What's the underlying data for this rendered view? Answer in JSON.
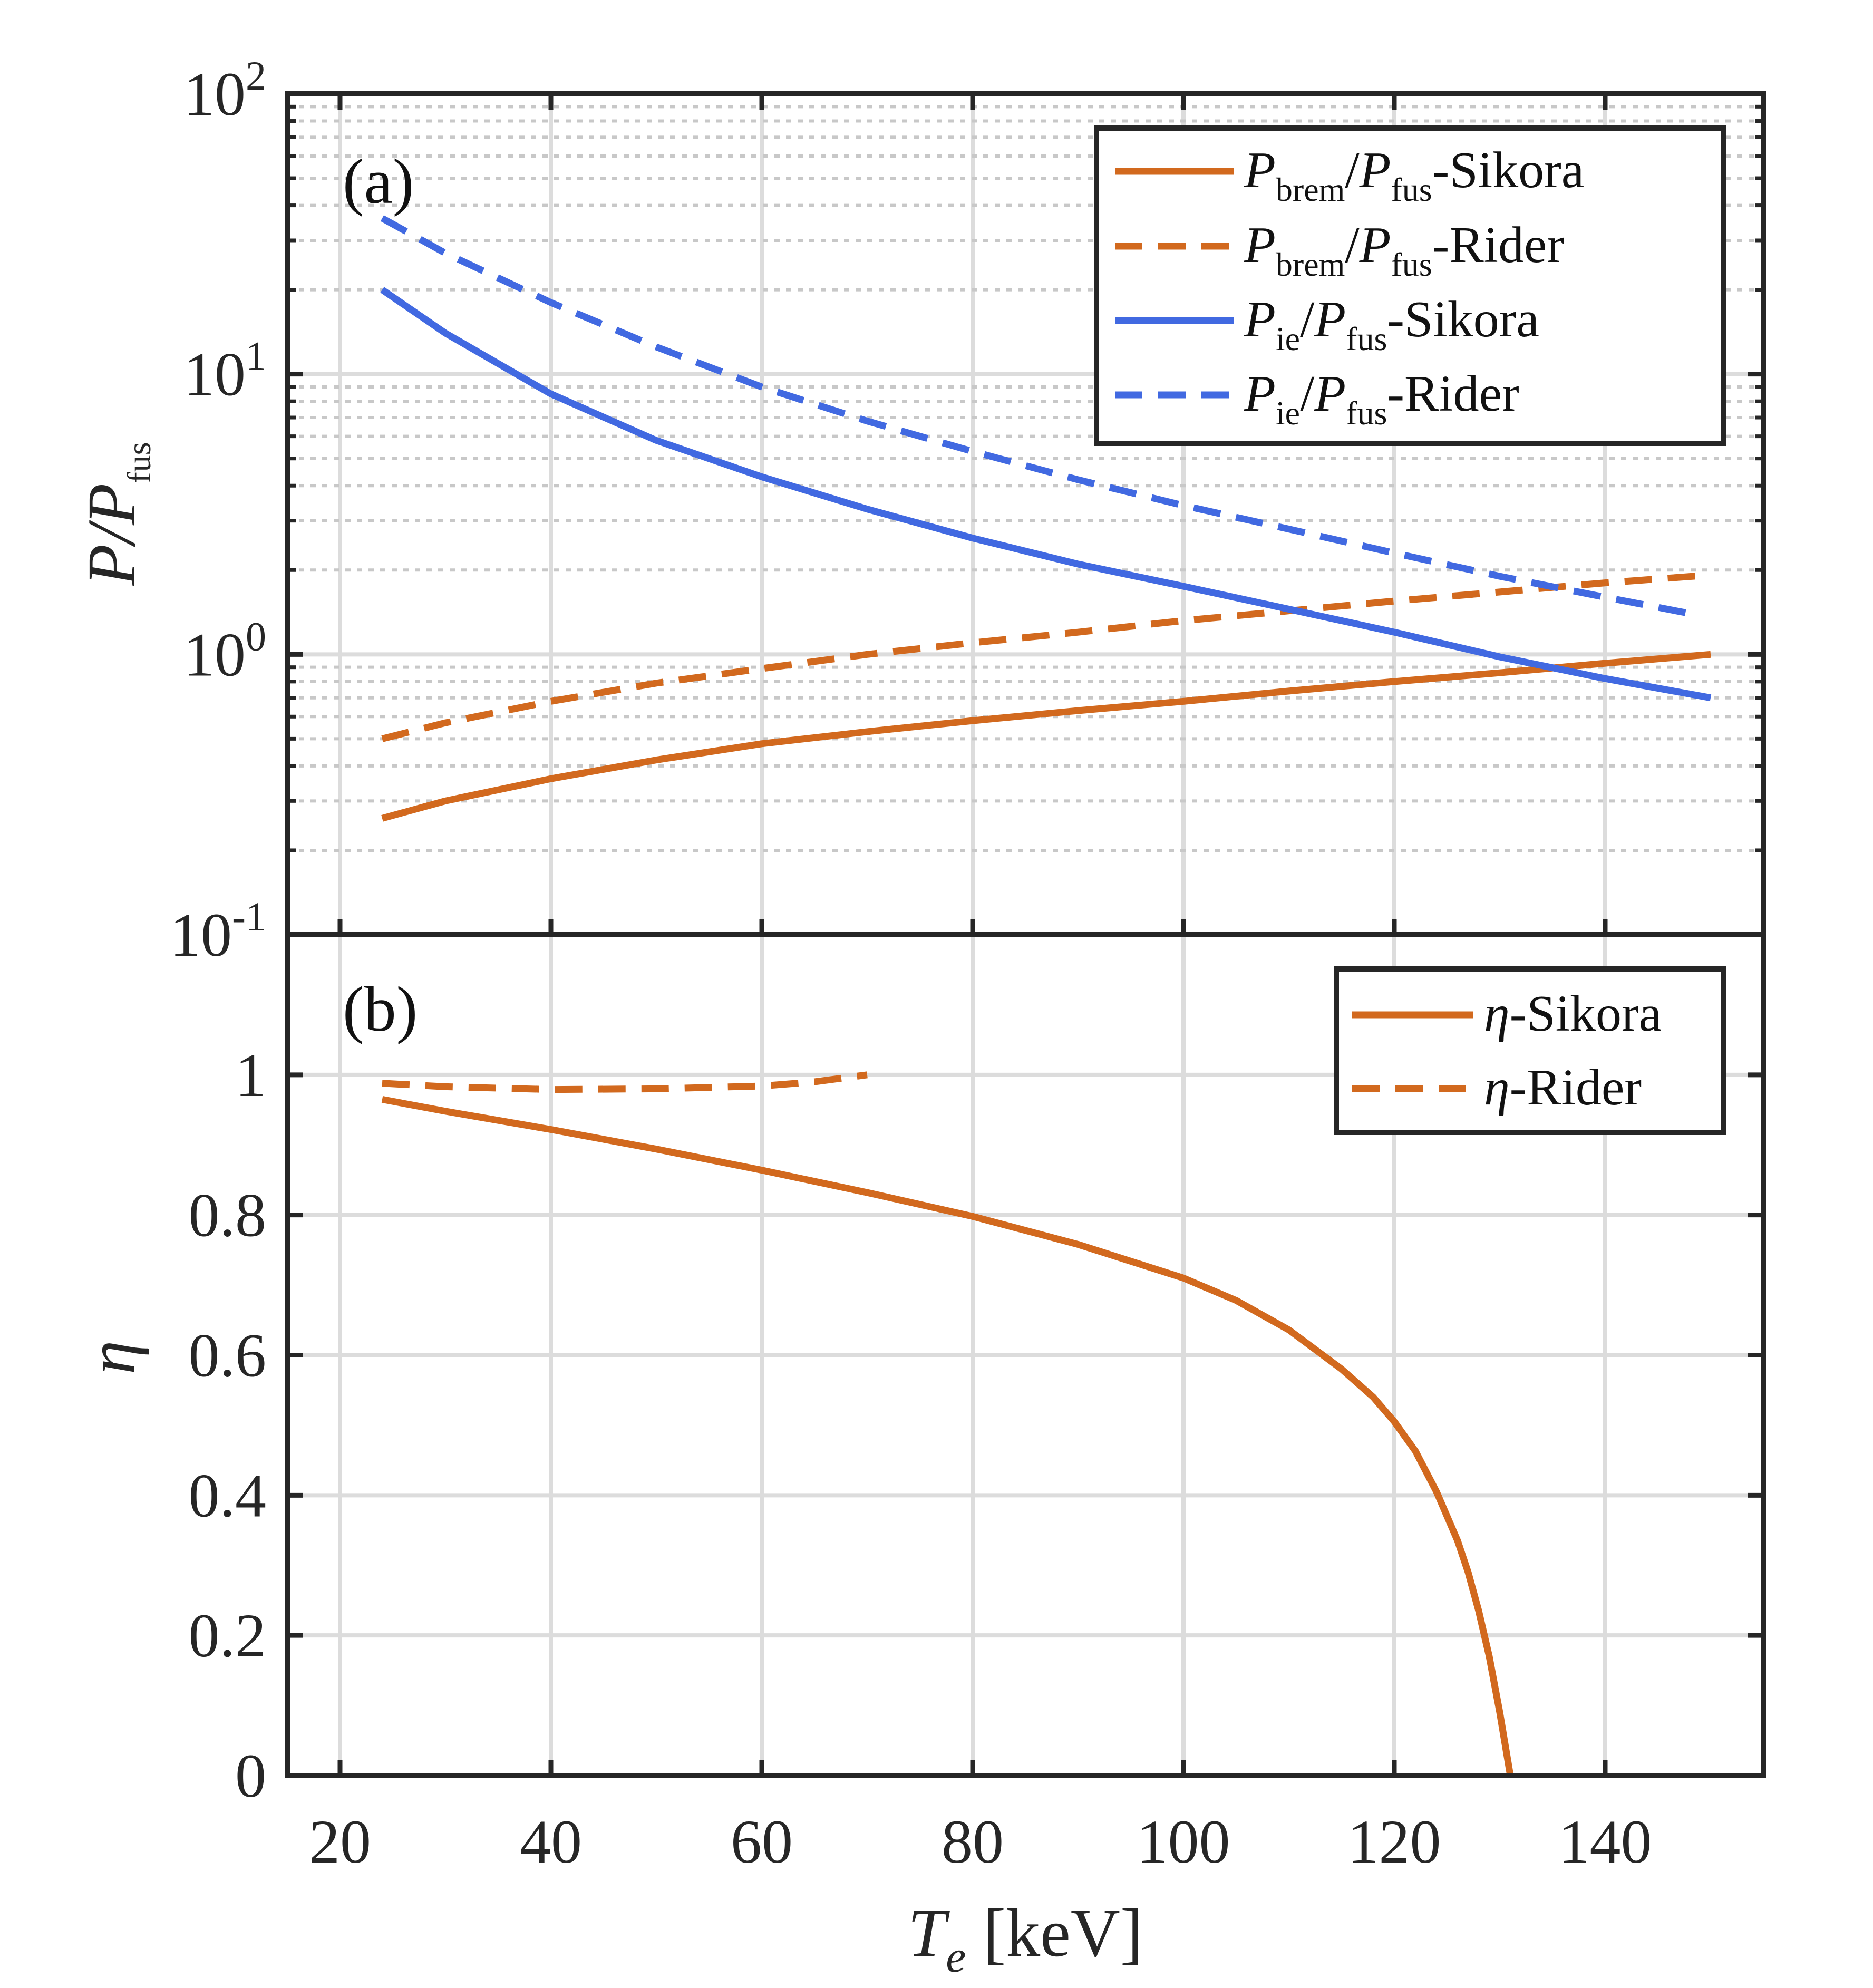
{
  "colors": {
    "orange": "#D2691E",
    "blue": "#4169E1",
    "axis": "#262626",
    "grid": "#dcdcdc"
  },
  "chart_data": [
    {
      "panel": "(a)",
      "type": "line",
      "yscale": "log",
      "xlim": [
        15,
        155
      ],
      "ylim": [
        0.1,
        100
      ],
      "xlabel": "",
      "ylabel": "P/P_fus",
      "ylabel_parts": {
        "main": "P/P",
        "sub": "fus"
      },
      "yticks": [
        {
          "label": "10",
          "exp": "2",
          "value": 100
        },
        {
          "label": "10",
          "exp": "1",
          "value": 10
        },
        {
          "label": "10",
          "exp": "0",
          "value": 1
        },
        {
          "label": "10",
          "exp": "-1",
          "value": 0.1
        }
      ],
      "legend_position": "top-right",
      "series": [
        {
          "name": "P_brem/P_fus-Sikora",
          "legend": {
            "a": "P",
            "as": "brem",
            "b": "P",
            "bs": "fus",
            "suffix": "-Sikora"
          },
          "style": "solid",
          "color": "#D2691E",
          "x": [
            24,
            30,
            40,
            50,
            60,
            70,
            80,
            90,
            100,
            110,
            120,
            130,
            140,
            150
          ],
          "y": [
            0.26,
            0.3,
            0.36,
            0.42,
            0.48,
            0.53,
            0.58,
            0.63,
            0.68,
            0.74,
            0.8,
            0.86,
            0.93,
            1.0
          ]
        },
        {
          "name": "P_brem/P_fus-Rider",
          "legend": {
            "a": "P",
            "as": "brem",
            "b": "P",
            "bs": "fus",
            "suffix": "-Rider"
          },
          "style": "dashed",
          "color": "#D2691E",
          "x": [
            24,
            30,
            40,
            50,
            60,
            70,
            80,
            90,
            100,
            110,
            120,
            130,
            140,
            150
          ],
          "y": [
            0.5,
            0.57,
            0.68,
            0.79,
            0.89,
            1.0,
            1.1,
            1.2,
            1.32,
            1.43,
            1.55,
            1.67,
            1.8,
            1.92
          ]
        },
        {
          "name": "P_ie/P_fus-Sikora",
          "legend": {
            "a": "P",
            "as": "ie",
            "b": "P",
            "bs": "fus",
            "suffix": "-Sikora"
          },
          "style": "solid",
          "color": "#4169E1",
          "x": [
            24,
            30,
            40,
            50,
            60,
            70,
            80,
            90,
            100,
            110,
            120,
            130,
            140,
            150
          ],
          "y": [
            20,
            14,
            8.5,
            5.8,
            4.3,
            3.3,
            2.6,
            2.1,
            1.75,
            1.45,
            1.2,
            0.98,
            0.82,
            0.7
          ]
        },
        {
          "name": "P_ie/P_fus-Rider",
          "legend": {
            "a": "P",
            "as": "ie",
            "b": "P",
            "bs": "fus",
            "suffix": "-Rider"
          },
          "style": "dashed",
          "color": "#4169E1",
          "x": [
            24,
            30,
            40,
            50,
            60,
            70,
            80,
            90,
            100,
            110,
            120,
            130,
            140,
            148
          ],
          "y": [
            36,
            27,
            18,
            12.5,
            9,
            6.8,
            5.3,
            4.2,
            3.4,
            2.8,
            2.3,
            1.9,
            1.6,
            1.4
          ]
        }
      ]
    },
    {
      "panel": "(b)",
      "type": "line",
      "xlim": [
        15,
        155
      ],
      "ylim": [
        0,
        1.2
      ],
      "xlabel": "T_e [keV]",
      "xlabel_parts": {
        "main": "T",
        "sub": "e",
        "unit": "[keV]"
      },
      "ylabel": "η",
      "xticks": [
        20,
        40,
        60,
        80,
        100,
        120,
        140
      ],
      "yticks": [
        "0",
        "0.2",
        "0.4",
        "0.6",
        "0.8",
        "1"
      ],
      "legend_position": "top-right",
      "series": [
        {
          "name": "η-Sikora",
          "legend": {
            "sym": "η",
            "suffix": "-Sikora"
          },
          "style": "solid",
          "color": "#D2691E",
          "x": [
            24,
            30,
            40,
            50,
            60,
            70,
            80,
            90,
            100,
            105,
            110,
            115,
            118,
            120,
            122,
            124,
            126,
            127,
            128,
            129,
            130,
            130.5,
            131
          ],
          "y": [
            0.965,
            0.948,
            0.922,
            0.894,
            0.864,
            0.832,
            0.798,
            0.758,
            0.71,
            0.678,
            0.636,
            0.58,
            0.54,
            0.505,
            0.463,
            0.405,
            0.335,
            0.29,
            0.235,
            0.17,
            0.09,
            0.045,
            0.0
          ]
        },
        {
          "name": "η-Rider",
          "legend": {
            "sym": "η",
            "suffix": "-Rider"
          },
          "style": "dashed",
          "color": "#D2691E",
          "x": [
            24,
            30,
            40,
            50,
            60,
            65,
            70
          ],
          "y": [
            0.988,
            0.983,
            0.979,
            0.98,
            0.984,
            0.99,
            1.0
          ]
        }
      ]
    }
  ]
}
